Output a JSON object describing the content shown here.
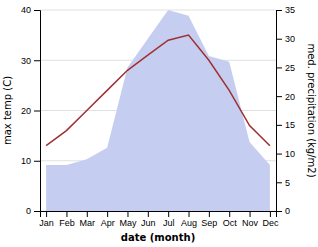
{
  "chart_data": {
    "type": "line",
    "categories": [
      "Jan",
      "Feb",
      "Mar",
      "Apr",
      "May",
      "Jun",
      "Jul",
      "Aug",
      "Sep",
      "Oct",
      "Nov",
      "Dec"
    ],
    "xlabel": "date (month)",
    "ylabel": "max temp (C)",
    "y2label": "med. precipitation (kg/m2)",
    "ylim": [
      0,
      40
    ],
    "yticks": [
      0,
      10,
      20,
      30,
      40
    ],
    "y2lim": [
      0,
      35
    ],
    "y2ticks": [
      0,
      5,
      10,
      15,
      20,
      25,
      30,
      35
    ],
    "grid": true,
    "series": [
      {
        "type": "area",
        "axis": "y2",
        "color": "#c5cef0",
        "values": [
          8,
          8,
          9,
          11,
          25,
          30,
          35,
          34,
          27,
          26,
          12,
          8
        ]
      },
      {
        "type": "line",
        "color": "#a03030",
        "values": [
          13,
          16,
          20,
          24,
          28,
          31,
          34,
          35,
          30,
          24,
          17,
          13
        ]
      }
    ]
  }
}
